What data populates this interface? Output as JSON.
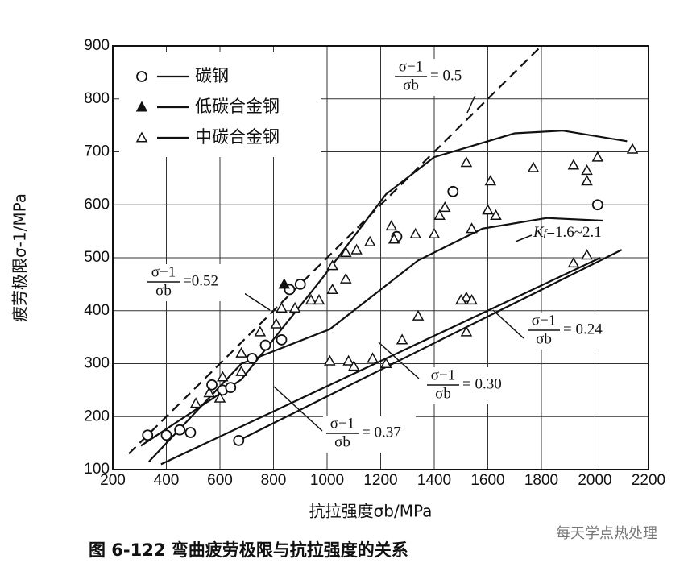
{
  "chart_data": {
    "type": "scatter",
    "y_label": "疲劳极限σ-1/MPa",
    "x_label": "抗拉强度σb/MPa",
    "caption": "图 6-122   弯曲疲劳极限与抗拉强度的关系",
    "watermark": "每天学点热处理",
    "xlim": [
      200,
      2200
    ],
    "ylim": [
      100,
      900
    ],
    "xticks": [
      200,
      400,
      600,
      800,
      1000,
      1200,
      1400,
      1600,
      1800,
      2000,
      2200
    ],
    "yticks": [
      100,
      200,
      300,
      400,
      500,
      600,
      700,
      800,
      900
    ],
    "grid": true,
    "legend": "upper left",
    "series": [
      {
        "name": "碳钢",
        "marker": "circle",
        "x": [
          330,
          400,
          450,
          490,
          670,
          570,
          610,
          640,
          720,
          770,
          830,
          860,
          900,
          1260,
          1470,
          2010
        ],
        "y": [
          165,
          165,
          175,
          170,
          155,
          260,
          250,
          255,
          310,
          335,
          345,
          440,
          450,
          540,
          625,
          600
        ]
      },
      {
        "name": "低碳合金钢",
        "marker": "filled-triangle",
        "x": [
          840
        ],
        "y": [
          450
        ]
      },
      {
        "name": "中碳合金钢",
        "marker": "triangle",
        "x": [
          510,
          560,
          600,
          610,
          680,
          680,
          750,
          810,
          830,
          880,
          940,
          970,
          1020,
          1020,
          1070,
          1070,
          1110,
          1160,
          1240,
          1250,
          1330,
          1400,
          1420,
          1440,
          1540,
          1600,
          1630,
          1610,
          1520,
          1770,
          1920,
          1970,
          1970,
          2010,
          2140,
          1920,
          1970,
          1010,
          1080,
          1100,
          1170,
          1220,
          1280,
          1340,
          1520,
          1500,
          1540,
          1520
        ],
        "y": [
          225,
          245,
          235,
          275,
          285,
          320,
          360,
          375,
          405,
          405,
          420,
          420,
          485,
          440,
          460,
          510,
          515,
          530,
          560,
          535,
          545,
          545,
          580,
          595,
          555,
          590,
          580,
          645,
          680,
          670,
          675,
          665,
          645,
          690,
          705,
          490,
          505,
          305,
          305,
          295,
          310,
          300,
          345,
          390,
          425,
          420,
          420,
          360
        ]
      }
    ],
    "lines": [
      {
        "style": "solid",
        "x": [
          305,
          680,
          980,
          1220,
          1400,
          1700,
          1880,
          2120
        ],
        "y": [
          145,
          270,
          460,
          620,
          690,
          735,
          740,
          720
        ]
      },
      {
        "style": "solid",
        "x": [
          335,
          680,
          1010,
          1340,
          1580,
          1820,
          2030
        ],
        "y": [
          115,
          300,
          365,
          495,
          555,
          575,
          570
        ]
      },
      {
        "style": "solid",
        "x": [
          380,
          2020
        ],
        "y": [
          110,
          500
        ]
      },
      {
        "style": "solid",
        "x": [
          670,
          2100
        ],
        "y": [
          155,
          515
        ]
      },
      {
        "style": "dashed",
        "x": [
          260,
          1790
        ],
        "y": [
          130,
          895
        ]
      }
    ],
    "annotations": [
      {
        "numerator": "σ−1",
        "denominator": "σb",
        "text": "= 0.5"
      },
      {
        "numerator": "σ−1",
        "denominator": "σb",
        "text": "=0.52"
      },
      {
        "numerator": "σ−1",
        "denominator": "σb",
        "text": "= 0.37"
      },
      {
        "numerator": "σ−1",
        "denominator": "σb",
        "text": "= 0.30"
      },
      {
        "numerator": "σ−1",
        "denominator": "σb",
        "text": "= 0.24"
      }
    ],
    "kf_label": {
      "letter": "K",
      "sub": "f",
      "text": "=1.6~2.1"
    }
  }
}
